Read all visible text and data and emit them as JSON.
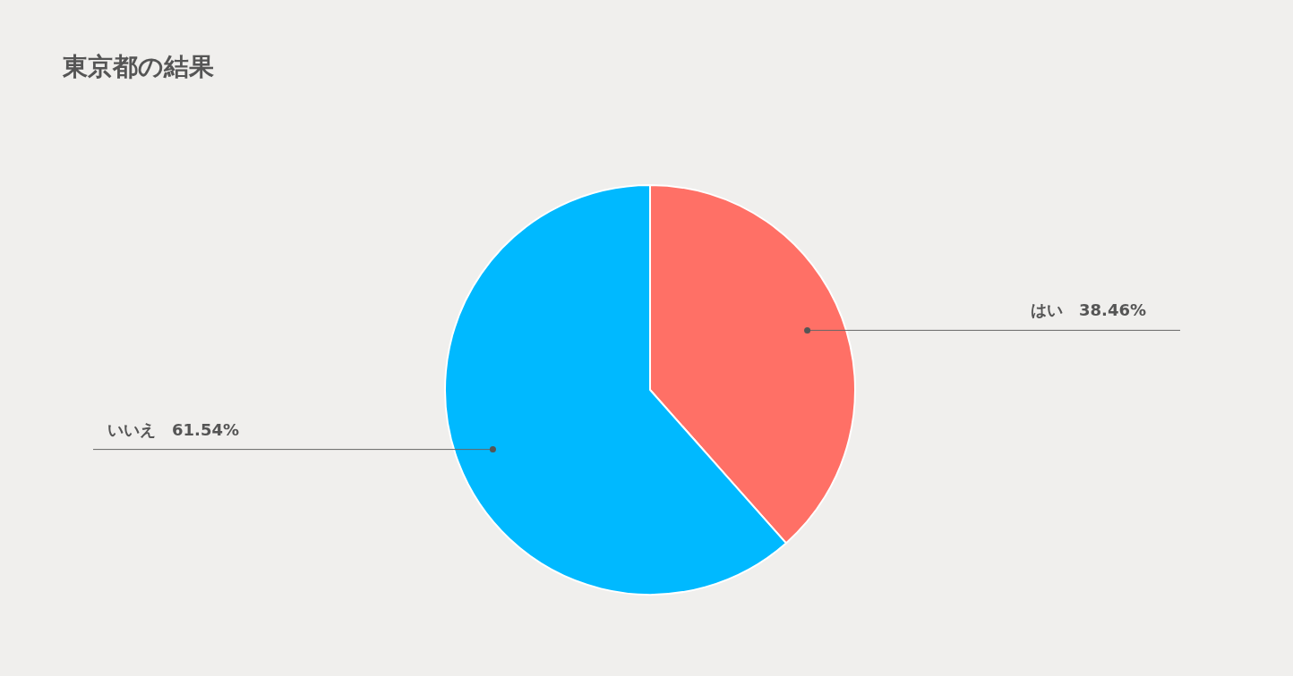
{
  "chart_data": {
    "type": "pie",
    "title": "東京都の結果",
    "categories": [
      "はい",
      "いいえ"
    ],
    "values": [
      38.46,
      61.54
    ],
    "colors": [
      "#ff7066",
      "#00b9ff"
    ],
    "value_labels": [
      "38.46%",
      "61.54%"
    ],
    "legend": false
  }
}
